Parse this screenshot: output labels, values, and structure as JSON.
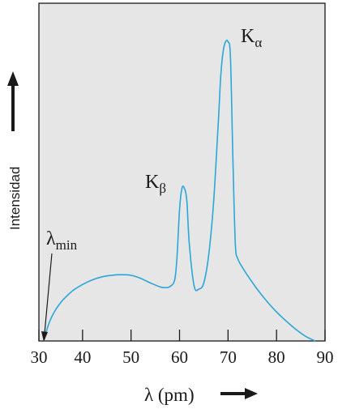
{
  "chart_data": {
    "type": "line",
    "xlabel": "λ (pm)",
    "ylabel": "Intensidad",
    "xlim": [
      31,
      90
    ],
    "ylim": [
      0,
      1
    ],
    "xticks": [
      30,
      40,
      50,
      60,
      70,
      80,
      90
    ],
    "xtick_labels": [
      "30",
      "40",
      "50",
      "60",
      "70",
      "80",
      "90"
    ],
    "grid": false,
    "colors": {
      "curve": "#2aa7d8",
      "background": "#e6e6e6",
      "axis": "#1a1a1a"
    },
    "series": [
      {
        "x": [
          32,
          33,
          34,
          35,
          36,
          38,
          40,
          42,
          44,
          46,
          48,
          50,
          52,
          54,
          56,
          57,
          58,
          59,
          59.5,
          60,
          60.5,
          61,
          61.5,
          62,
          63,
          64,
          65,
          66,
          67,
          68,
          68.5,
          69,
          69.5,
          70,
          70.5,
          71,
          71.5,
          72,
          73,
          74,
          76,
          78,
          80,
          82,
          84,
          86,
          88
        ],
        "y": [
          0.0,
          0.055,
          0.09,
          0.115,
          0.135,
          0.165,
          0.185,
          0.2,
          0.21,
          0.215,
          0.217,
          0.215,
          0.205,
          0.19,
          0.177,
          0.175,
          0.178,
          0.2,
          0.28,
          0.43,
          0.5,
          0.5,
          0.46,
          0.32,
          0.18,
          0.17,
          0.19,
          0.28,
          0.45,
          0.72,
          0.87,
          0.95,
          0.98,
          0.98,
          0.93,
          0.6,
          0.32,
          0.27,
          0.24,
          0.215,
          0.17,
          0.13,
          0.095,
          0.065,
          0.038,
          0.015,
          0.0
        ]
      }
    ],
    "annotations": [
      {
        "name": "k-alpha",
        "text": "K",
        "sub": "α",
        "x": 71.5,
        "y": 1.0
      },
      {
        "name": "k-beta",
        "text": "K",
        "sub": "β",
        "x": 54,
        "y": 0.52
      },
      {
        "name": "lambda-min",
        "text": "λ",
        "sub": "min",
        "x": 32,
        "y": 0.0
      }
    ]
  }
}
